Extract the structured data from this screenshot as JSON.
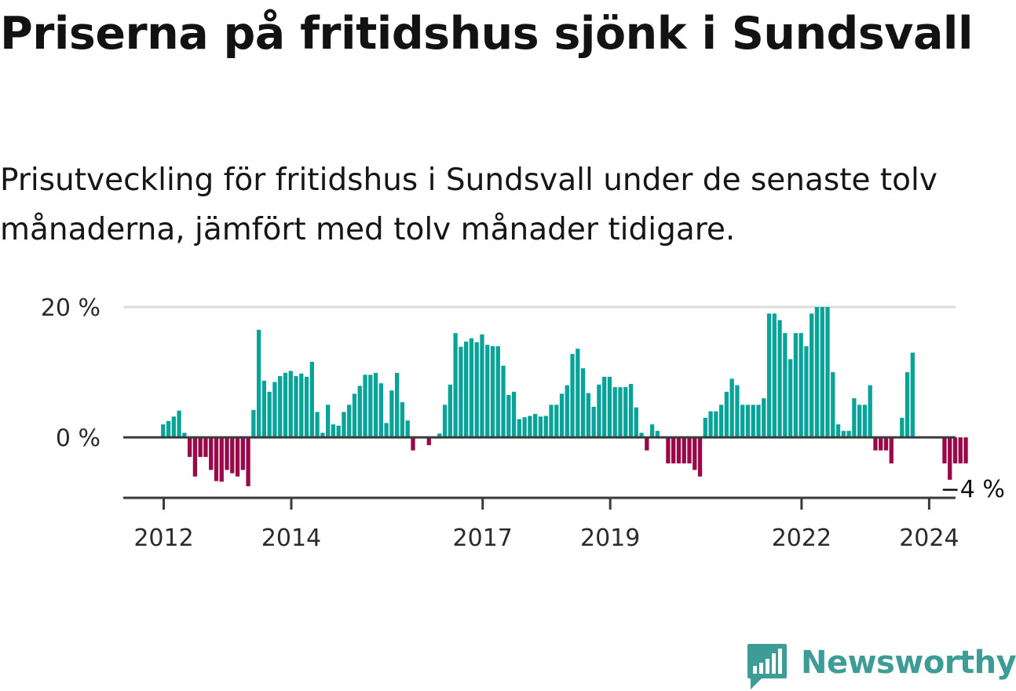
{
  "title": "Priserna på fritidshus sjönk i Sundsvall",
  "subtitle": "Prisutveckling för fritidshus i Sundsvall under de senaste tolv månaderna, jämfört med tolv månader tidigare.",
  "brand": {
    "name": "Newsworthy",
    "icon": "newsworthy-logo-icon"
  },
  "colors": {
    "positive": "#0aa39a",
    "negative": "#990849",
    "baseline": "#3a3a3a",
    "grid": "#dcdcdc",
    "text": "#2b2b2b",
    "brand": "#3e9c96"
  },
  "chart_data": {
    "type": "bar",
    "title": "Priserna på fritidshus sjönk i Sundsvall",
    "subtitle": "Prisutveckling för fritidshus i Sundsvall under de senaste tolv månaderna, jämfört med tolv månader tidigare.",
    "xlabel": "",
    "ylabel": "",
    "ylim": [
      -9,
      20
    ],
    "grid": true,
    "yticks": [
      {
        "value": 0,
        "label": "0 %"
      },
      {
        "value": 20,
        "label": "20 %"
      }
    ],
    "xticks": [
      {
        "year": 2012,
        "label": "2012"
      },
      {
        "year": 2014,
        "label": "2014"
      },
      {
        "year": 2017,
        "label": "2017"
      },
      {
        "year": 2019,
        "label": "2019"
      },
      {
        "year": 2022,
        "label": "2022"
      },
      {
        "year": 2024,
        "label": "2024"
      }
    ],
    "annotation": {
      "label": "−4 %",
      "value": -4
    },
    "start": "2012-01",
    "values": [
      2,
      2.5,
      3.2,
      4.1,
      0.7,
      -3,
      -6,
      -3,
      -3,
      -5,
      -6.7,
      -6.8,
      -5,
      -5.5,
      -6,
      -5,
      -7.5,
      4.2,
      16.5,
      8.7,
      7,
      8.5,
      9.4,
      9.9,
      10.2,
      9.4,
      9.8,
      9.3,
      11.6,
      3.9,
      0.7,
      5,
      2,
      1.8,
      3.9,
      5,
      6.7,
      7.9,
      9.6,
      9.6,
      9.9,
      8.3,
      2.2,
      7.2,
      9.9,
      5.4,
      2.6,
      -2,
      0,
      0,
      -1.2,
      0,
      0.6,
      5,
      8.1,
      16,
      13.9,
      14.7,
      15.2,
      14.6,
      15.8,
      14.2,
      14,
      14,
      11,
      6.5,
      7,
      2.8,
      3.1,
      3.3,
      3.6,
      3.2,
      3.3,
      5,
      5,
      6.7,
      8,
      12.8,
      13.6,
      10.6,
      6.8,
      4.7,
      8.1,
      9.3,
      9.3,
      7.7,
      7.7,
      7.7,
      8.2,
      4.6,
      0.7,
      -2,
      2,
      1,
      0,
      -4,
      -4,
      -4,
      -4,
      -4,
      -5,
      -6,
      3,
      4,
      4,
      5,
      7,
      9,
      8,
      5,
      5,
      5,
      5,
      6,
      19,
      19,
      18,
      16,
      12,
      16,
      16,
      14,
      19,
      20,
      20,
      20,
      10,
      2,
      1,
      1,
      6,
      5,
      5,
      8,
      -2,
      -2,
      -2,
      -4,
      0,
      3,
      10,
      13,
      0,
      0,
      0,
      0,
      0,
      -4,
      -6.5,
      -4,
      -4,
      -4
    ]
  }
}
